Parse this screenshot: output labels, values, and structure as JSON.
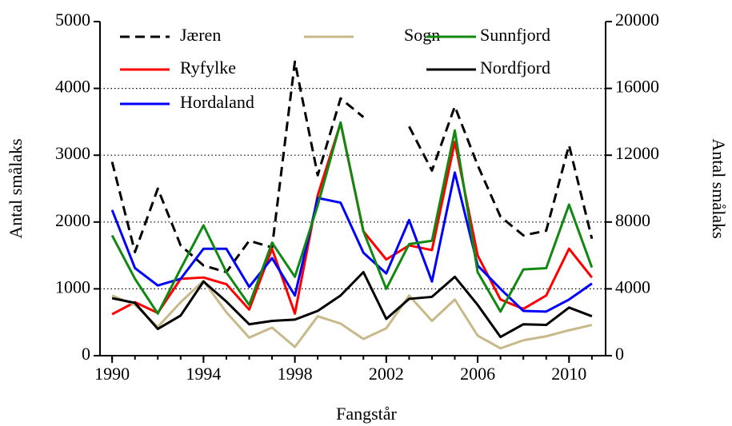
{
  "chart_data": {
    "type": "line",
    "xlabel": "Fangstår",
    "ylabel": "Antal smålaks",
    "y2label": "Antal smålaks",
    "x": [
      1990,
      1991,
      1992,
      1993,
      1994,
      1995,
      1996,
      1997,
      1998,
      1999,
      2000,
      2001,
      2002,
      2003,
      2004,
      2005,
      2006,
      2007,
      2008,
      2009,
      2010,
      2011
    ],
    "xlim": [
      1989.47,
      2011.6
    ],
    "xticks": [
      1990,
      1994,
      1998,
      2002,
      2006,
      2010
    ],
    "ylim": [
      0,
      5000
    ],
    "yticks": [
      0,
      1000,
      2000,
      3000,
      4000,
      5000
    ],
    "y2lim": [
      0,
      20000
    ],
    "y2ticks": [
      0,
      4000,
      8000,
      12000,
      16000,
      20000
    ],
    "grid": true,
    "series": [
      {
        "name": "Jæren",
        "color": "#000000",
        "dashed": true,
        "axis": "y2",
        "values": [
          11600,
          6200,
          10000,
          6600,
          5400,
          5000,
          6880,
          6480,
          17600,
          10800,
          15400,
          14280,
          null,
          13720,
          11080,
          14920,
          11400,
          8320,
          7200,
          7480,
          12600,
          7000
        ]
      },
      {
        "name": "Ryfylke",
        "color": "#ff0000",
        "values": [
          620,
          800,
          640,
          1150,
          1170,
          1070,
          690,
          1600,
          630,
          2400,
          3480,
          1860,
          1440,
          1650,
          1580,
          3200,
          1500,
          840,
          700,
          900,
          1600,
          1170
        ]
      },
      {
        "name": "Hordaland",
        "color": "#0000ff",
        "values": [
          2180,
          1310,
          1050,
          1150,
          1600,
          1600,
          1030,
          1460,
          900,
          2360,
          2290,
          1540,
          1230,
          2030,
          1110,
          2740,
          1350,
          1000,
          670,
          660,
          840,
          1080
        ]
      },
      {
        "name": "Sogn",
        "color": "#c8b98a",
        "values": [
          900,
          760,
          430,
          800,
          1120,
          650,
          270,
          420,
          130,
          590,
          480,
          250,
          410,
          900,
          520,
          840,
          300,
          110,
          230,
          290,
          380,
          460
        ]
      },
      {
        "name": "Sunnfjord",
        "color": "#118811",
        "values": [
          1800,
          1150,
          630,
          1300,
          1950,
          1250,
          760,
          1690,
          1180,
          2250,
          3490,
          1860,
          1000,
          1670,
          1720,
          3370,
          1250,
          660,
          1290,
          1310,
          2260,
          1320
        ]
      },
      {
        "name": "Nordfjord",
        "color": "#000000",
        "values": [
          860,
          790,
          400,
          600,
          1110,
          810,
          470,
          520,
          540,
          670,
          900,
          1250,
          550,
          850,
          880,
          1180,
          760,
          280,
          470,
          460,
          720,
          590
        ]
      }
    ]
  }
}
